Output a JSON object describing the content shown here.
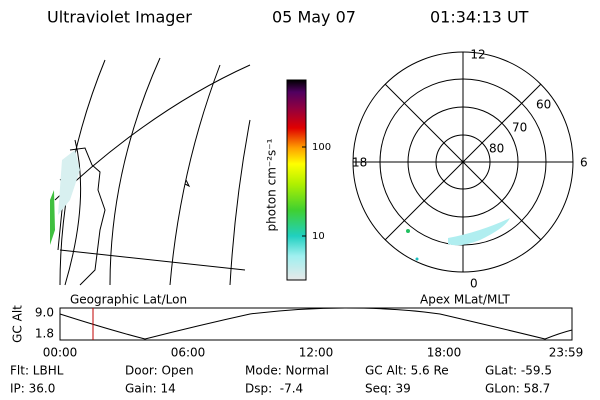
{
  "header": {
    "title": "Ultraviolet Imager",
    "date": "05 May 07",
    "time": "01:34:13 UT"
  },
  "colorbar": {
    "label": "photon cm⁻²s⁻¹",
    "ticks": [
      "100",
      "10"
    ]
  },
  "polar": {
    "mlt_labels": [
      "12",
      "18",
      "6",
      "0"
    ],
    "mlat_labels": [
      "60",
      "70",
      "80"
    ]
  },
  "captions": {
    "left": "Geographic Lat/Lon",
    "right": "Apex MLat/MLT"
  },
  "altitude": {
    "axis_label": "GC Alt",
    "yticks": [
      "9.0",
      "1.8"
    ],
    "xticks": [
      "00:00",
      "06:00",
      "12:00",
      "18:00",
      "23:59"
    ]
  },
  "footer": {
    "rows": [
      [
        "Flt: LBHL",
        "Door: Open",
        "Mode: Normal",
        "GC Alt: 5.6 Re",
        "GLat: -59.5"
      ],
      [
        "IP: 36.0",
        "Gain: 14",
        "Dsp:  -7.4",
        "Seq: 39",
        "GLon: 58.7"
      ]
    ]
  }
}
